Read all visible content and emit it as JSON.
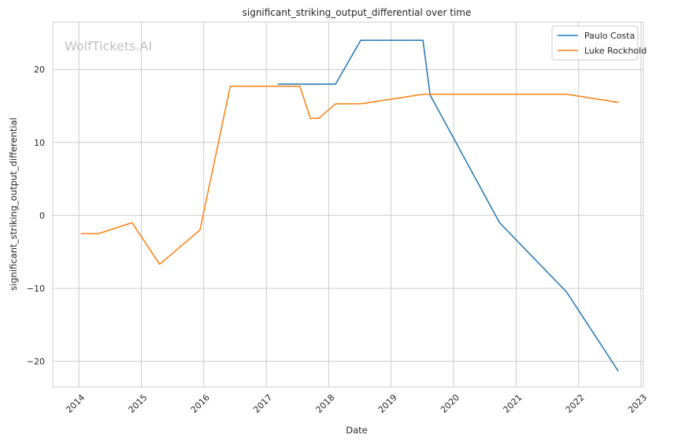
{
  "watermark": "WolfTickets.AI",
  "chart_data": {
    "type": "line",
    "title": "significant_striking_output_differential over time",
    "xlabel": "Date",
    "ylabel": "significant_striking_output_differential",
    "x_axis_type": "date",
    "xlim": [
      "2013-08-01",
      "2023-01-15"
    ],
    "ylim": [
      -23.5,
      26.5
    ],
    "x_ticks": [
      "2014",
      "2015",
      "2016",
      "2017",
      "2018",
      "2019",
      "2020",
      "2021",
      "2022",
      "2023"
    ],
    "y_ticks": [
      -20,
      -10,
      0,
      10,
      20
    ],
    "grid": true,
    "legend_position": "top-right",
    "series": [
      {
        "name": "Paulo Costa",
        "color": "#1f77b4",
        "points": [
          {
            "x": "2017-03-11",
            "y": 18.0
          },
          {
            "x": "2018-02-10",
            "y": 18.0
          },
          {
            "x": "2018-07-07",
            "y": 24.0
          },
          {
            "x": "2019-07-06",
            "y": 24.0
          },
          {
            "x": "2019-08-17",
            "y": 16.5
          },
          {
            "x": "2020-09-26",
            "y": -1.0
          },
          {
            "x": "2021-10-23",
            "y": -10.5
          },
          {
            "x": "2022-08-20",
            "y": -21.3
          }
        ]
      },
      {
        "name": "Luke Rockhold",
        "color": "#ff7f0e",
        "points": [
          {
            "x": "2014-01-15",
            "y": -2.5
          },
          {
            "x": "2014-04-26",
            "y": -2.5
          },
          {
            "x": "2014-11-08",
            "y": -1.0
          },
          {
            "x": "2015-04-18",
            "y": -6.7
          },
          {
            "x": "2015-12-10",
            "y": -2.0
          },
          {
            "x": "2016-06-04",
            "y": 17.7
          },
          {
            "x": "2017-07-16",
            "y": 17.7
          },
          {
            "x": "2017-09-16",
            "y": 13.3
          },
          {
            "x": "2017-11-04",
            "y": 13.3
          },
          {
            "x": "2018-02-10",
            "y": 15.3
          },
          {
            "x": "2018-07-07",
            "y": 15.3
          },
          {
            "x": "2019-07-06",
            "y": 16.6
          },
          {
            "x": "2021-10-23",
            "y": 16.6
          },
          {
            "x": "2022-08-20",
            "y": 15.5
          }
        ]
      }
    ]
  }
}
